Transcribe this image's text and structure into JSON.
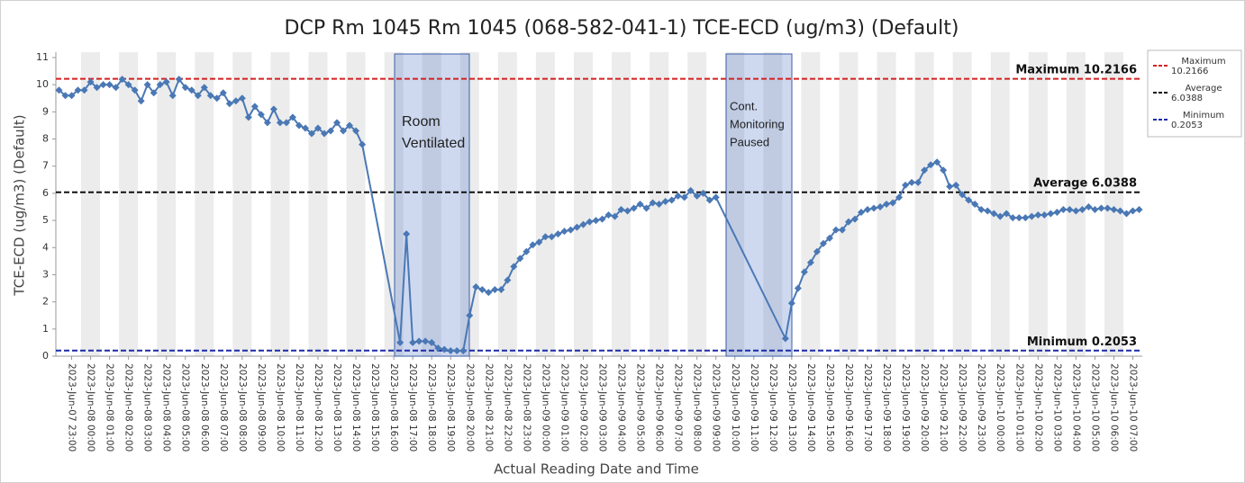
{
  "chart_data": {
    "type": "line",
    "title": "DCP Rm 1045 Rm 1045 (068-582-041-1) TCE-ECD (ug/m3) (Default)",
    "y_label": "TCE-ECD (ug/m3) (Default)",
    "x_label": "Actual Reading Date and Time",
    "ylim": [
      0,
      11
    ],
    "yticks": [
      0,
      1,
      2,
      3,
      4,
      5,
      6,
      7,
      8,
      9,
      10,
      11
    ],
    "span_gaps": true,
    "categories": [
      null,
      null,
      "2023-Jun-07 23:00",
      null,
      null,
      "2023-Jun-08 00:00",
      null,
      null,
      "2023-Jun-08 01:00",
      null,
      null,
      "2023-Jun-08 02:00",
      null,
      null,
      "2023-Jun-08 03:00",
      null,
      null,
      "2023-Jun-08 04:00",
      null,
      null,
      "2023-Jun-08 05:00",
      null,
      null,
      "2023-Jun-08 06:00",
      null,
      null,
      "2023-Jun-08 07:00",
      null,
      null,
      "2023-Jun-08 08:00",
      null,
      null,
      "2023-Jun-08 09:00",
      null,
      null,
      "2023-Jun-08 10:00",
      null,
      null,
      "2023-Jun-08 11:00",
      null,
      null,
      "2023-Jun-08 12:00",
      null,
      null,
      "2023-Jun-08 13:00",
      null,
      null,
      "2023-Jun-08 14:00",
      null,
      null,
      "2023-Jun-08 15:00",
      null,
      null,
      "2023-Jun-08 16:00",
      null,
      null,
      "2023-Jun-08 17:00",
      null,
      null,
      "2023-Jun-08 18:00",
      null,
      null,
      "2023-Jun-08 19:00",
      null,
      null,
      "2023-Jun-08 20:00",
      null,
      null,
      "2023-Jun-08 21:00",
      null,
      null,
      "2023-Jun-08 22:00",
      null,
      null,
      "2023-Jun-08 23:00",
      null,
      null,
      "2023-Jun-09 00:00",
      null,
      null,
      "2023-Jun-09 01:00",
      null,
      null,
      "2023-Jun-09 02:00",
      null,
      null,
      "2023-Jun-09 03:00",
      null,
      null,
      "2023-Jun-09 04:00",
      null,
      null,
      "2023-Jun-09 05:00",
      null,
      null,
      "2023-Jun-09 06:00",
      null,
      null,
      "2023-Jun-09 07:00",
      null,
      null,
      "2023-Jun-09 08:00",
      null,
      null,
      "2023-Jun-09 09:00",
      null,
      null,
      "2023-Jun-09 10:00",
      null,
      null,
      "2023-Jun-09 11:00",
      null,
      null,
      "2023-Jun-09 12:00",
      null,
      null,
      "2023-Jun-09 13:00",
      null,
      null,
      "2023-Jun-09 14:00",
      null,
      null,
      "2023-Jun-09 15:00",
      null,
      null,
      "2023-Jun-09 16:00",
      null,
      null,
      "2023-Jun-09 17:00",
      null,
      null,
      "2023-Jun-09 18:00",
      null,
      null,
      "2023-Jun-09 19:00",
      null,
      null,
      "2023-Jun-09 20:00",
      null,
      null,
      "2023-Jun-09 21:00",
      null,
      null,
      "2023-Jun-09 22:00",
      null,
      null,
      "2023-Jun-09 23:00",
      null,
      null,
      "2023-Jun-10 00:00",
      null,
      null,
      "2023-Jun-10 01:00",
      null,
      null,
      "2023-Jun-10 02:00",
      null,
      null,
      "2023-Jun-10 03:00",
      null,
      null,
      "2023-Jun-10 04:00",
      null,
      null,
      "2023-Jun-10 05:00",
      null,
      null,
      "2023-Jun-10 06:00",
      null,
      null,
      "2023-Jun-10 07:00",
      null
    ],
    "series": [
      {
        "name": "TCE-ECD",
        "color": "#4a78b5",
        "values": [
          9.8,
          9.6,
          9.6,
          9.8,
          9.8,
          10.1,
          9.9,
          10.0,
          10.0,
          9.9,
          10.2,
          10.0,
          9.8,
          9.4,
          10.0,
          9.7,
          10.0,
          10.1,
          9.6,
          10.2,
          9.9,
          9.8,
          9.6,
          9.9,
          9.6,
          9.5,
          9.7,
          9.3,
          9.4,
          9.5,
          8.8,
          9.2,
          8.9,
          8.6,
          9.1,
          8.6,
          8.6,
          8.8,
          8.5,
          8.4,
          8.2,
          8.4,
          8.2,
          8.3,
          8.6,
          8.3,
          8.5,
          8.3,
          7.8,
          null,
          null,
          null,
          null,
          null,
          0.5,
          4.5,
          0.5,
          0.55,
          0.55,
          0.5,
          0.3,
          0.25,
          0.2,
          0.2,
          0.2,
          1.5,
          2.55,
          2.45,
          2.35,
          2.45,
          2.45,
          2.8,
          3.3,
          3.6,
          3.85,
          4.1,
          4.2,
          4.4,
          4.4,
          4.5,
          4.6,
          4.65,
          4.75,
          4.85,
          4.95,
          5.0,
          5.05,
          5.2,
          5.15,
          5.4,
          5.35,
          5.45,
          5.6,
          5.45,
          5.65,
          5.6,
          5.7,
          5.75,
          5.9,
          5.85,
          6.1,
          5.9,
          6.0,
          5.75,
          5.85,
          null,
          null,
          null,
          null,
          null,
          null,
          null,
          null,
          null,
          null,
          0.65,
          1.95,
          2.5,
          3.1,
          3.45,
          3.85,
          4.15,
          4.35,
          4.65,
          4.65,
          4.95,
          5.05,
          5.3,
          5.4,
          5.45,
          5.5,
          5.6,
          5.65,
          5.85,
          6.3,
          6.4,
          6.4,
          6.85,
          7.05,
          7.15,
          6.85,
          6.25,
          6.3,
          5.95,
          5.75,
          5.6,
          5.4,
          5.35,
          5.25,
          5.15,
          5.25,
          5.1,
          5.1,
          5.1,
          5.15,
          5.2,
          5.2,
          5.25,
          5.3,
          5.4,
          5.4,
          5.35,
          5.4,
          5.5,
          5.4,
          5.45,
          5.45,
          5.4,
          5.35,
          5.25,
          5.35,
          5.4
        ]
      }
    ],
    "reference_lines": [
      {
        "name": "Maximum",
        "value": 10.2166,
        "color": "#d42020"
      },
      {
        "name": "Average",
        "value": 6.0388,
        "color": "#111111"
      },
      {
        "name": "Minimum",
        "value": 0.2053,
        "color": "#1a2aa8"
      }
    ],
    "annotations": [
      {
        "lines": [
          "Room",
          "Ventilated"
        ]
      },
      {
        "lines": [
          "Cont.",
          "Monitoring",
          "Paused"
        ]
      }
    ]
  }
}
